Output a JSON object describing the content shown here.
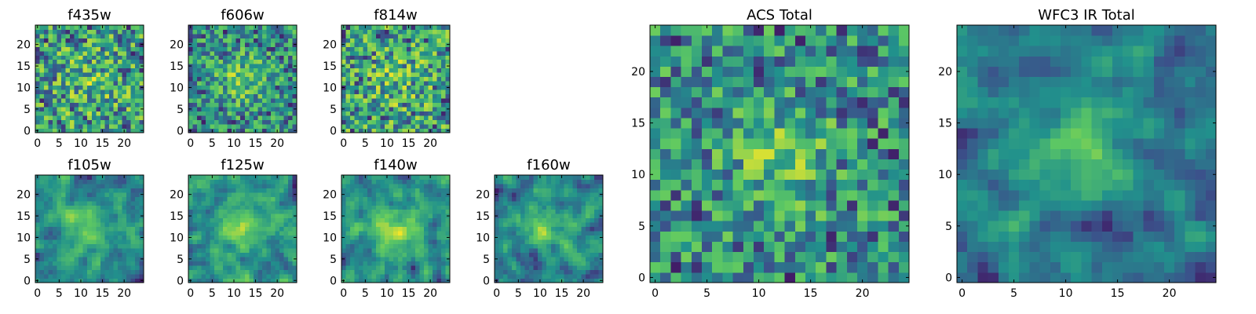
{
  "figure": {
    "colormap": "viridis",
    "colormap_stops": [
      "#440154",
      "#3b528b",
      "#21918c",
      "#5ec962",
      "#fde725"
    ],
    "frame_color": "#000000"
  },
  "chart_data": [
    {
      "id": "f435w",
      "type": "heatmap",
      "title": "f435w",
      "grid_size": 25,
      "xlim": [
        0,
        24
      ],
      "ylim": [
        0,
        24
      ],
      "xticks": [
        0,
        5,
        10,
        15,
        20
      ],
      "yticks": [
        0,
        5,
        10,
        15,
        20
      ],
      "pattern_seed": 11,
      "peak": [
        12,
        12
      ],
      "peak_strength": 0.15,
      "peak_width": 5,
      "blur": 0
    },
    {
      "id": "f606w",
      "type": "heatmap",
      "title": "f606w",
      "grid_size": 25,
      "xlim": [
        0,
        24
      ],
      "ylim": [
        0,
        24
      ],
      "xticks": [
        0,
        5,
        10,
        15,
        20
      ],
      "yticks": [
        0,
        5,
        10,
        15,
        20
      ],
      "pattern_seed": 23,
      "peak": [
        12,
        12
      ],
      "peak_strength": 0.3,
      "peak_width": 4,
      "blur": 0
    },
    {
      "id": "f814w",
      "type": "heatmap",
      "title": "f814w",
      "grid_size": 25,
      "xlim": [
        0,
        24
      ],
      "ylim": [
        0,
        24
      ],
      "xticks": [
        0,
        5,
        10,
        15,
        20
      ],
      "yticks": [
        0,
        5,
        10,
        15,
        20
      ],
      "pattern_seed": 37,
      "peak": [
        12,
        12
      ],
      "peak_strength": 0.15,
      "peak_width": 5,
      "blur": 0
    },
    {
      "id": "f105w",
      "type": "heatmap",
      "title": "f105w",
      "grid_size": 25,
      "xlim": [
        0,
        24
      ],
      "ylim": [
        0,
        24
      ],
      "xticks": [
        0,
        5,
        10,
        15,
        20
      ],
      "yticks": [
        0,
        5,
        10,
        15,
        20
      ],
      "pattern_seed": 41,
      "peak": [
        12,
        12
      ],
      "peak_strength": 0.35,
      "peak_width": 4,
      "blur": 1
    },
    {
      "id": "f125w",
      "type": "heatmap",
      "title": "f125w",
      "grid_size": 25,
      "xlim": [
        0,
        24
      ],
      "ylim": [
        0,
        24
      ],
      "xticks": [
        0,
        5,
        10,
        15,
        20
      ],
      "yticks": [
        0,
        5,
        10,
        15,
        20
      ],
      "pattern_seed": 53,
      "peak": [
        12,
        12
      ],
      "peak_strength": 0.3,
      "peak_width": 4,
      "blur": 1
    },
    {
      "id": "f140w",
      "type": "heatmap",
      "title": "f140w",
      "grid_size": 25,
      "xlim": [
        0,
        24
      ],
      "ylim": [
        0,
        24
      ],
      "xticks": [
        0,
        5,
        10,
        15,
        20
      ],
      "yticks": [
        0,
        5,
        10,
        15,
        20
      ],
      "pattern_seed": 67,
      "peak": [
        12,
        12
      ],
      "peak_strength": 0.35,
      "peak_width": 4,
      "blur": 1
    },
    {
      "id": "f160w",
      "type": "heatmap",
      "title": "f160w",
      "grid_size": 25,
      "xlim": [
        0,
        24
      ],
      "ylim": [
        0,
        24
      ],
      "xticks": [
        0,
        5,
        10,
        15,
        20
      ],
      "yticks": [
        0,
        5,
        10,
        15,
        20
      ],
      "pattern_seed": 79,
      "peak": [
        11,
        12
      ],
      "peak_strength": 0.4,
      "peak_width": 3.5,
      "blur": 1
    },
    {
      "id": "acs_total",
      "type": "heatmap",
      "title": "ACS Total",
      "grid_size": 25,
      "xlim": [
        0,
        24
      ],
      "ylim": [
        0,
        24
      ],
      "xticks": [
        0,
        5,
        10,
        15,
        20
      ],
      "yticks": [
        0,
        5,
        10,
        15,
        20
      ],
      "pattern_seed": 97,
      "peak": [
        12,
        12
      ],
      "peak_strength": 0.3,
      "peak_width": 3.5,
      "blur": 0
    },
    {
      "id": "wfc3_ir_total",
      "type": "heatmap",
      "title": "WFC3 IR Total",
      "grid_size": 25,
      "xlim": [
        0,
        24
      ],
      "ylim": [
        0,
        24
      ],
      "xticks": [
        0,
        5,
        10,
        15,
        20
      ],
      "yticks": [
        0,
        5,
        10,
        15,
        20
      ],
      "pattern_seed": 131,
      "peak": [
        11,
        12
      ],
      "peak_strength": 0.45,
      "peak_width": 3,
      "blur": 1
    }
  ]
}
